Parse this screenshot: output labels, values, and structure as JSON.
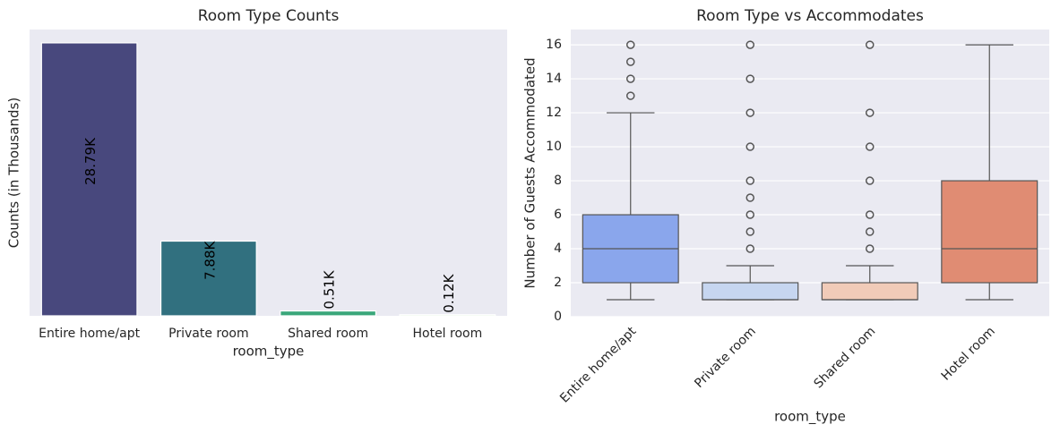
{
  "chart_data": [
    {
      "type": "bar",
      "title": "Room Type Counts",
      "xlabel": "room_type",
      "ylabel": "Counts (in Thousands)",
      "categories": [
        "Entire home/apt",
        "Private room",
        "Shared room",
        "Hotel room"
      ],
      "values": [
        28.79,
        7.88,
        0.51,
        0.12
      ],
      "value_labels": [
        "28.79K",
        "7.88K",
        "0.51K",
        "0.12K"
      ],
      "colors": [
        "#48487d",
        "#31707f",
        "#3aa77a",
        "#6cc55b"
      ],
      "ylim": [
        0,
        30.2
      ]
    },
    {
      "type": "box",
      "title": "Room Type vs Accommodates",
      "xlabel": "room_type",
      "ylabel": "Number of Guests Accommodated",
      "categories": [
        "Entire home/apt",
        "Private room",
        "Shared room",
        "Hotel room"
      ],
      "boxes": [
        {
          "min": 1,
          "q1": 2,
          "median": 4,
          "q3": 6,
          "max": 12,
          "outliers": [
            13,
            14,
            15,
            16
          ],
          "color": "#8aa6ec"
        },
        {
          "min": 1,
          "q1": 1,
          "median": 1,
          "q3": 2,
          "max": 3,
          "outliers": [
            4,
            5,
            6,
            7,
            8,
            10,
            12,
            14,
            16
          ],
          "color": "#c6d6f0"
        },
        {
          "min": 1,
          "q1": 1,
          "median": 1,
          "q3": 2,
          "max": 3,
          "outliers": [
            4,
            5,
            6,
            8,
            10,
            12,
            16
          ],
          "color": "#f1cbb8"
        },
        {
          "min": 1,
          "q1": 2,
          "median": 4,
          "q3": 8,
          "max": 16,
          "outliers": [],
          "color": "#e08c73"
        }
      ],
      "ylim": [
        0,
        16.9
      ],
      "yticks": [
        0,
        2,
        4,
        6,
        8,
        10,
        12,
        14,
        16
      ],
      "grid": true
    }
  ]
}
